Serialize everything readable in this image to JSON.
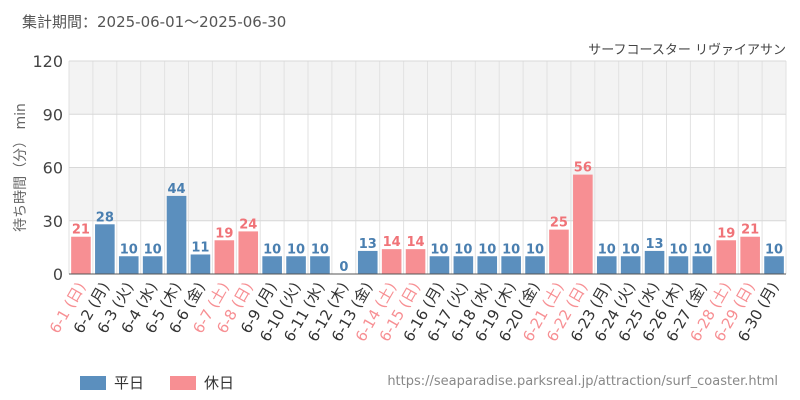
{
  "header": {
    "period": "集計期間：2025-06-01～2025-06-30",
    "attraction": "サーフコースター リヴァイアサン"
  },
  "footer": {
    "source": "https://seaparadise.parksreal.jp/attraction/surf_coaster.html"
  },
  "colors": {
    "weekday": "#5b8fbe",
    "holiday": "#f78f93",
    "weekday_label": "#4a7fb0",
    "holiday_label": "#f07378",
    "band": "#f3f3f3",
    "grid": "#e2e2e2"
  },
  "chart_data": {
    "type": "bar",
    "title": "",
    "xlabel": "",
    "ylabel": "待ち時間（分） min",
    "ylim": [
      0,
      120
    ],
    "yticks": [
      0,
      30,
      60,
      90,
      120
    ],
    "grid": true,
    "legend_position": "bottom-left",
    "categories": [
      "6-1 (日)",
      "6-2 (月)",
      "6-3 (火)",
      "6-4 (水)",
      "6-5 (木)",
      "6-6 (金)",
      "6-7 (土)",
      "6-8 (日)",
      "6-9 (月)",
      "6-10 (火)",
      "6-11 (水)",
      "6-12 (木)",
      "6-13 (金)",
      "6-14 (土)",
      "6-15 (日)",
      "6-16 (月)",
      "6-17 (火)",
      "6-18 (水)",
      "6-19 (木)",
      "6-20 (金)",
      "6-21 (土)",
      "6-22 (日)",
      "6-23 (月)",
      "6-24 (火)",
      "6-25 (水)",
      "6-26 (木)",
      "6-27 (金)",
      "6-28 (土)",
      "6-29 (日)",
      "6-30 (月)"
    ],
    "values": [
      21,
      28,
      10,
      10,
      44,
      11,
      19,
      24,
      10,
      10,
      10,
      0,
      13,
      14,
      14,
      10,
      10,
      10,
      10,
      10,
      25,
      56,
      10,
      10,
      13,
      10,
      10,
      19,
      21,
      10
    ],
    "day_type": [
      "休日",
      "平日",
      "平日",
      "平日",
      "平日",
      "平日",
      "休日",
      "休日",
      "平日",
      "平日",
      "平日",
      "平日",
      "平日",
      "休日",
      "休日",
      "平日",
      "平日",
      "平日",
      "平日",
      "平日",
      "休日",
      "休日",
      "平日",
      "平日",
      "平日",
      "平日",
      "平日",
      "休日",
      "休日",
      "平日"
    ],
    "series": [
      {
        "name": "平日"
      },
      {
        "name": "休日"
      }
    ]
  }
}
